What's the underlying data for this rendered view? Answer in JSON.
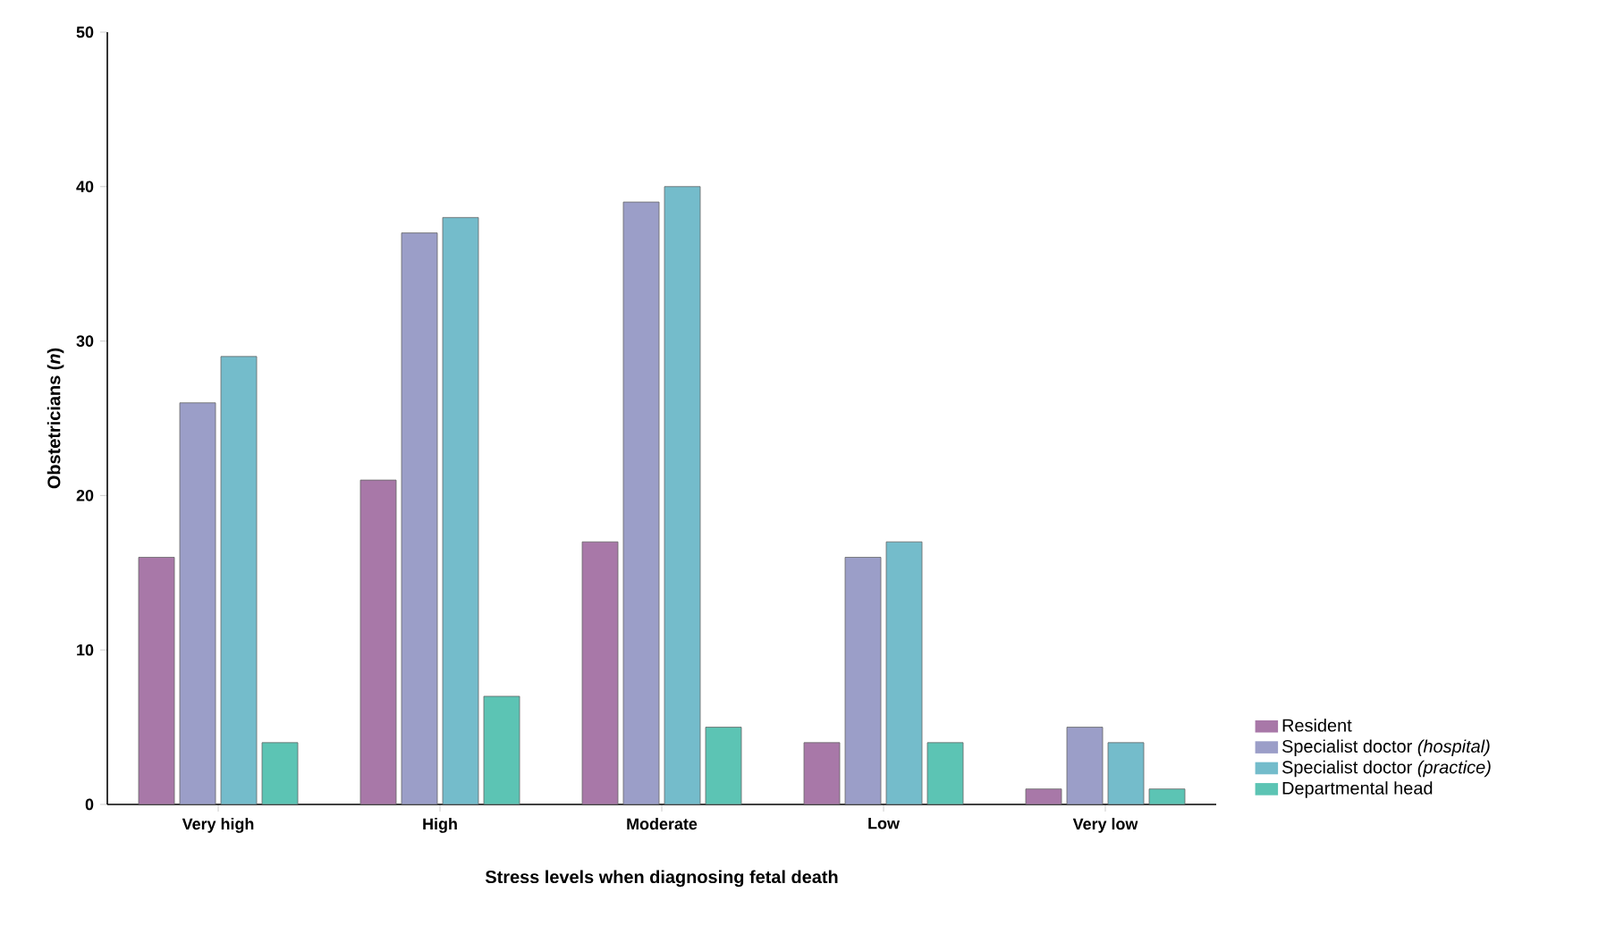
{
  "chart_data": {
    "type": "bar",
    "xlabel": "Stress levels when diagnosing fetal death",
    "ylabel": "Obstetricians (*n*)",
    "categories": [
      "Very high",
      "High",
      "Moderate",
      "Low",
      "Very low"
    ],
    "series": [
      {
        "name": "Resident",
        "color": "#a878a8",
        "values": [
          16,
          21,
          17,
          4,
          1
        ]
      },
      {
        "name": "Specialist doctor *(hospital)*",
        "color": "#9b9ec8",
        "values": [
          26,
          37,
          39,
          16,
          5
        ]
      },
      {
        "name": "Specialist doctor *(practice)*",
        "color": "#74bccb",
        "values": [
          29,
          38,
          40,
          17,
          4
        ]
      },
      {
        "name": "Departmental head",
        "color": "#5cc4b4",
        "values": [
          4,
          7,
          5,
          4,
          1
        ]
      }
    ],
    "ylim": [
      0,
      50
    ],
    "yticks": [
      0,
      10,
      20,
      30,
      40,
      50
    ],
    "legend": "right"
  }
}
